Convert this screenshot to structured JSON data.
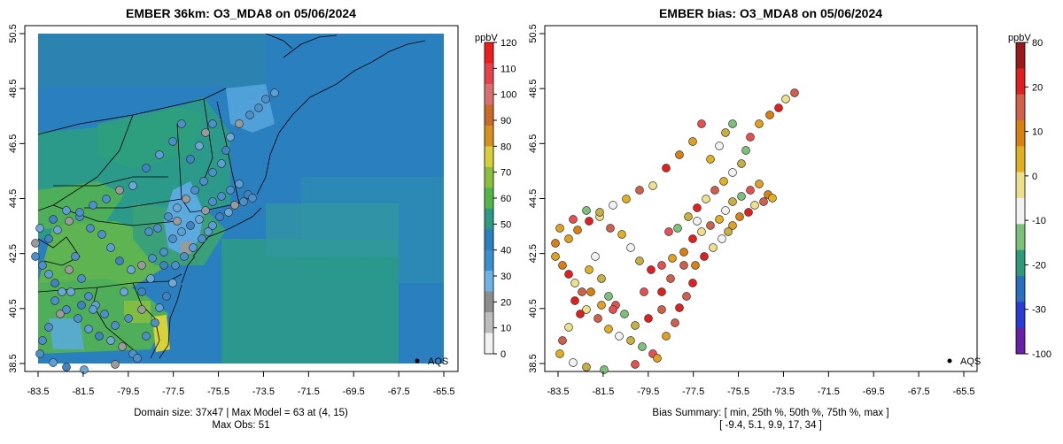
{
  "left_panel": {
    "title": "EMBER 36km: O3_MDA8 on 05/06/2024",
    "footer_line1": "Domain size: 37x47 | Max Model = 63 at (4, 15)",
    "footer_line2": "Max Obs: 51",
    "legend_point_label": "AQS",
    "colorbar": {
      "unit": "ppbV",
      "tick_labels": [
        "0",
        "10",
        "20",
        "30",
        "40",
        "50",
        "60",
        "70",
        "80",
        "90",
        "100",
        "110",
        "120"
      ],
      "colors": [
        "#f2f2f2",
        "#bdbdbd",
        "#8d8d8d",
        "#6fb2e4",
        "#3c8fcf",
        "#2a7fbf",
        "#2e9a86",
        "#53b54a",
        "#8cc03c",
        "#d7cf3c",
        "#d49020",
        "#c86a2a",
        "#d7706f",
        "#e5414a",
        "#ee1c1c"
      ]
    }
  },
  "right_panel": {
    "title": "EMBER bias: O3_MDA8 on 05/06/2024",
    "footer_line1": "Bias Summary: [ min, 25th %, 50th %, 75th %, max ]",
    "footer_line2": "[ -9.4,   5.1,   9.9,   17,   34 ]",
    "legend_point_label": "AQS",
    "colorbar": {
      "unit": "ppbV",
      "tick_labels": [
        "-100",
        "-30",
        "-20",
        "-10",
        "0",
        "10",
        "20",
        "80"
      ],
      "colors": [
        "#6a1fa8",
        "#2b3bd6",
        "#2a6fc0",
        "#2f9a7a",
        "#7dc07a",
        "#f2f2f2",
        "#ece08a",
        "#e0b020",
        "#d98010",
        "#d0604a",
        "#e02020",
        "#9a1a1a"
      ]
    }
  },
  "x_tick_labels": [
    "-83.5",
    "-81.5",
    "-79.5",
    "-77.5",
    "-75.5",
    "-73.5",
    "-71.5",
    "-69.5",
    "-67.5",
    "-65.5"
  ],
  "y_tick_labels": [
    "38.5",
    "40.5",
    "42.5",
    "44.5",
    "46.5",
    "48.5",
    "50.5"
  ],
  "colors": {
    "ocean_base": "#2a7fbf",
    "land_green": "#4fae5a",
    "teal": "#2b9a8a",
    "light_blue": "#5aaae0",
    "yellow": "#d8d23a",
    "station_blue": "#4a90cc",
    "station_grey": "#9a9a9a"
  }
}
